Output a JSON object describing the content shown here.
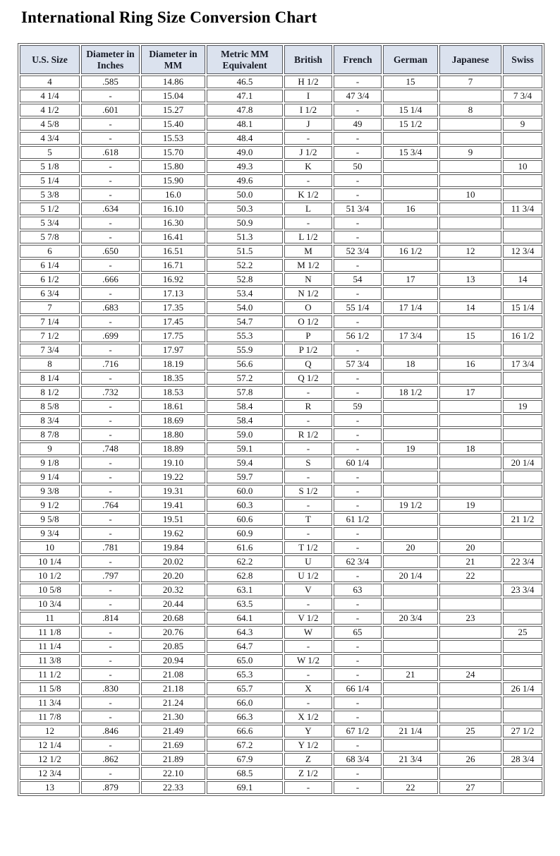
{
  "chart_data": {
    "type": "table",
    "title": "International Ring Size Conversion Chart",
    "columns": [
      "U.S. Size",
      "Diameter in Inches",
      "Diameter in MM",
      "Metric MM Equivalent",
      "British",
      "French",
      "German",
      "Japanese",
      "Swiss"
    ],
    "rows": [
      [
        "4",
        ".585",
        "14.86",
        "46.5",
        "H 1/2",
        "-",
        "15",
        "7",
        ""
      ],
      [
        "4 1/4",
        "-",
        "15.04",
        "47.1",
        "I",
        "47 3/4",
        "",
        "",
        "7 3/4"
      ],
      [
        "4 1/2",
        ".601",
        "15.27",
        "47.8",
        "I 1/2",
        "-",
        "15 1/4",
        "8",
        ""
      ],
      [
        "4 5/8",
        "-",
        "15.40",
        "48.1",
        "J",
        "49",
        "15 1/2",
        "",
        "9"
      ],
      [
        "4 3/4",
        "-",
        "15.53",
        "48.4",
        "-",
        "-",
        "",
        "",
        ""
      ],
      [
        "5",
        ".618",
        "15.70",
        "49.0",
        "J 1/2",
        "-",
        "15 3/4",
        "9",
        ""
      ],
      [
        "5 1/8",
        "-",
        "15.80",
        "49.3",
        "K",
        "50",
        "",
        "",
        "10"
      ],
      [
        "5 1/4",
        "-",
        "15.90",
        "49.6",
        "-",
        "-",
        "",
        "",
        ""
      ],
      [
        "5 3/8",
        "-",
        "16.0",
        "50.0",
        "K 1/2",
        "-",
        "",
        "10",
        ""
      ],
      [
        "5 1/2",
        ".634",
        "16.10",
        "50.3",
        "L",
        "51 3/4",
        "16",
        "",
        "11 3/4"
      ],
      [
        "5 3/4",
        "-",
        "16.30",
        "50.9",
        "-",
        "-",
        "",
        "",
        ""
      ],
      [
        "5 7/8",
        "-",
        "16.41",
        "51.3",
        "L 1/2",
        "-",
        "",
        "",
        ""
      ],
      [
        "6",
        ".650",
        "16.51",
        "51.5",
        "M",
        "52 3/4",
        "16 1/2",
        "12",
        "12 3/4"
      ],
      [
        "6 1/4",
        "-",
        "16.71",
        "52.2",
        "M 1/2",
        "-",
        "",
        "",
        ""
      ],
      [
        "6 1/2",
        ".666",
        "16.92",
        "52.8",
        "N",
        "54",
        "17",
        "13",
        "14"
      ],
      [
        "6 3/4",
        "-",
        "17.13",
        "53.4",
        "N 1/2",
        "-",
        "",
        "",
        ""
      ],
      [
        "7",
        ".683",
        "17.35",
        "54.0",
        "O",
        "55 1/4",
        "17 1/4",
        "14",
        "15 1/4"
      ],
      [
        "7 1/4",
        "-",
        "17.45",
        "54.7",
        "O 1/2",
        "-",
        "",
        "",
        ""
      ],
      [
        "7 1/2",
        ".699",
        "17.75",
        "55.3",
        "P",
        "56 1/2",
        "17 3/4",
        "15",
        "16 1/2"
      ],
      [
        "7 3/4",
        "-",
        "17.97",
        "55.9",
        "P 1/2",
        "-",
        "",
        "",
        ""
      ],
      [
        "8",
        ".716",
        "18.19",
        "56.6",
        "Q",
        "57 3/4",
        "18",
        "16",
        "17 3/4"
      ],
      [
        "8 1/4",
        "-",
        "18.35",
        "57.2",
        "Q 1/2",
        "-",
        "",
        "",
        ""
      ],
      [
        "8 1/2",
        ".732",
        "18.53",
        "57.8",
        "-",
        "-",
        "18 1/2",
        "17",
        ""
      ],
      [
        "8 5/8",
        "-",
        "18.61",
        "58.4",
        "R",
        "59",
        "",
        "",
        "19"
      ],
      [
        "8 3/4",
        "-",
        "18.69",
        "58.4",
        "-",
        "-",
        "",
        "",
        ""
      ],
      [
        "8 7/8",
        "-",
        "18.80",
        "59.0",
        "R 1/2",
        "-",
        "",
        "",
        ""
      ],
      [
        "9",
        ".748",
        "18.89",
        "59.1",
        "-",
        "-",
        "19",
        "18",
        ""
      ],
      [
        "9 1/8",
        "-",
        "19.10",
        "59.4",
        "S",
        "60 1/4",
        "",
        "",
        "20 1/4"
      ],
      [
        "9 1/4",
        "-",
        "19.22",
        "59.7",
        "-",
        "-",
        "",
        "",
        ""
      ],
      [
        "9 3/8",
        "-",
        "19.31",
        "60.0",
        "S 1/2",
        "-",
        "",
        "",
        ""
      ],
      [
        "9 1/2",
        ".764",
        "19.41",
        "60.3",
        "-",
        "-",
        "19 1/2",
        "19",
        ""
      ],
      [
        "9 5/8",
        "-",
        "19.51",
        "60.6",
        "T",
        "61 1/2",
        "",
        "",
        "21 1/2"
      ],
      [
        "9 3/4",
        "-",
        "19.62",
        "60.9",
        "-",
        "-",
        "",
        "",
        ""
      ],
      [
        "10",
        ".781",
        "19.84",
        "61.6",
        "T 1/2",
        "-",
        "20",
        "20",
        ""
      ],
      [
        "10 1/4",
        "-",
        "20.02",
        "62.2",
        "U",
        "62 3/4",
        "",
        "21",
        "22 3/4"
      ],
      [
        "10 1/2",
        ".797",
        "20.20",
        "62.8",
        "U 1/2",
        "-",
        "20 1/4",
        "22",
        ""
      ],
      [
        "10 5/8",
        "-",
        "20.32",
        "63.1",
        "V",
        "63",
        "",
        "",
        "23 3/4"
      ],
      [
        "10 3/4",
        "-",
        "20.44",
        "63.5",
        "-",
        "-",
        "",
        "",
        ""
      ],
      [
        "11",
        ".814",
        "20.68",
        "64.1",
        "V 1/2",
        "-",
        "20 3/4",
        "23",
        ""
      ],
      [
        "11 1/8",
        "-",
        "20.76",
        "64.3",
        "W",
        "65",
        "",
        "",
        "25"
      ],
      [
        "11 1/4",
        "-",
        "20.85",
        "64.7",
        "-",
        "-",
        "",
        "",
        ""
      ],
      [
        "11 3/8",
        "-",
        "20.94",
        "65.0",
        "W 1/2",
        "-",
        "",
        "",
        ""
      ],
      [
        "11 1/2",
        "-",
        "21.08",
        "65.3",
        "-",
        "-",
        "21",
        "24",
        ""
      ],
      [
        "11 5/8",
        ".830",
        "21.18",
        "65.7",
        "X",
        "66 1/4",
        "",
        "",
        "26 1/4"
      ],
      [
        "11 3/4",
        "-",
        "21.24",
        "66.0",
        "-",
        "-",
        "",
        "",
        ""
      ],
      [
        "11 7/8",
        "-",
        "21.30",
        "66.3",
        "X 1/2",
        "-",
        "",
        "",
        ""
      ],
      [
        "12",
        ".846",
        "21.49",
        "66.6",
        "Y",
        "67 1/2",
        "21 1/4",
        "25",
        "27 1/2"
      ],
      [
        "12 1/4",
        "-",
        "21.69",
        "67.2",
        "Y 1/2",
        "-",
        "",
        "",
        ""
      ],
      [
        "12 1/2",
        ".862",
        "21.89",
        "67.9",
        "Z",
        "68 3/4",
        "21 3/4",
        "26",
        "28 3/4"
      ],
      [
        "12 3/4",
        "-",
        "22.10",
        "68.5",
        "Z 1/2",
        "-",
        "",
        "",
        ""
      ],
      [
        "13",
        ".879",
        "22.33",
        "69.1",
        "-",
        "-",
        "22",
        "27",
        ""
      ]
    ],
    "colors": {
      "header_bg": "#dbe2ee",
      "grid_border": "#5a5a5a",
      "text": "#121212"
    },
    "layout": {
      "grid": "on",
      "header_rows": 1
    }
  }
}
